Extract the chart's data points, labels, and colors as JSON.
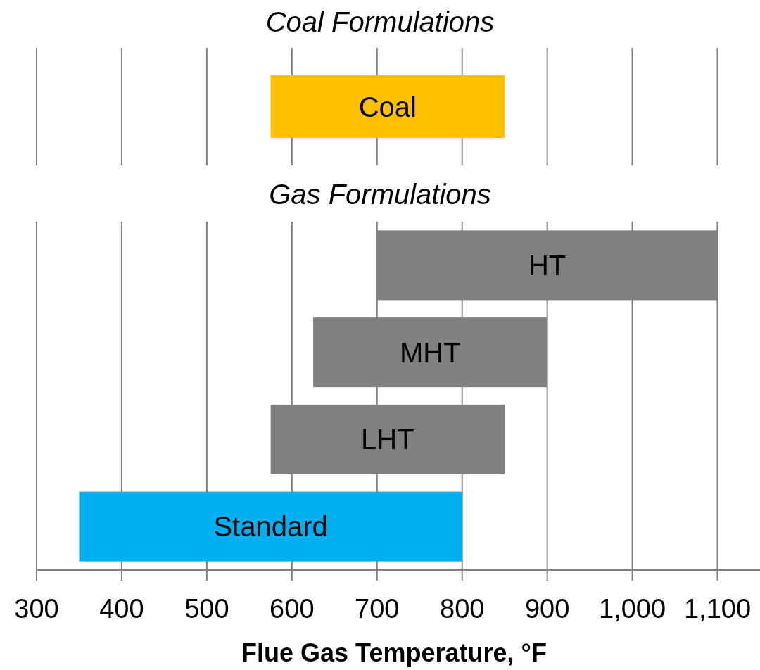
{
  "chart_data": [
    {
      "type": "bar",
      "orientation": "horizontal",
      "title": "Coal Formulations",
      "categories": [
        "Coal"
      ],
      "base": [
        575
      ],
      "values": [
        275
      ],
      "colors": [
        "#ffc000"
      ],
      "xlim": [
        300,
        1150
      ],
      "xticks": [
        300,
        400,
        500,
        600,
        700,
        800,
        900,
        1000,
        1100
      ],
      "grid": "x",
      "tick_labels": false
    },
    {
      "type": "bar",
      "orientation": "horizontal",
      "title": "Gas Formulations",
      "xlabel": "Flue Gas Temperature, °F",
      "categories": [
        "HT",
        "MHT",
        "LHT",
        "Standard"
      ],
      "base": [
        700,
        625,
        575,
        350
      ],
      "values": [
        400,
        275,
        275,
        450
      ],
      "colors": [
        "#808080",
        "#808080",
        "#808080",
        "#00b0f0"
      ],
      "xlim": [
        300,
        1150
      ],
      "xticks": [
        300,
        400,
        500,
        600,
        700,
        800,
        900,
        {
          "value": 1000,
          "label": "1,000"
        },
        {
          "value": 1100,
          "label": "1,100"
        }
      ],
      "grid": "x"
    }
  ]
}
